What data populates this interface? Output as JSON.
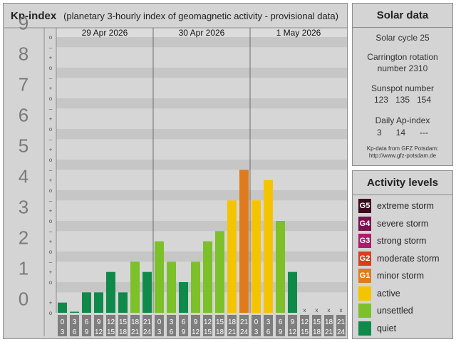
{
  "header": {
    "title": "Kp-index",
    "subtitle": "(planetary 3-hourly index of geomagnetic activity - provisional data)"
  },
  "colors": {
    "quiet": "#0f8a4a",
    "unsettled": "#7cc02a",
    "active": "#f5c400",
    "g1": "#e07b1d",
    "g2": "#d93e1f",
    "g3": "#b4196a",
    "g4": "#7a0f4f",
    "g5": "#3c0a1e"
  },
  "chart_data": {
    "type": "bar",
    "y_range": [
      0,
      9
    ],
    "y_tick_labels": [
      "0",
      "1",
      "2",
      "3",
      "4",
      "5",
      "6",
      "7",
      "8",
      "9"
    ],
    "minor_tick_symbols": [
      "o",
      "+",
      "–"
    ],
    "days": [
      "29 Apr 2026",
      "30 Apr 2026",
      "1 May 2026"
    ],
    "interval_labels": [
      [
        "0",
        "3"
      ],
      [
        "3",
        "6"
      ],
      [
        "6",
        "9"
      ],
      [
        "9",
        "12"
      ],
      [
        "12",
        "15"
      ],
      [
        "15",
        "18"
      ],
      [
        "18",
        "21"
      ],
      [
        "21",
        "24"
      ],
      [
        "0",
        "3"
      ],
      [
        "3",
        "6"
      ],
      [
        "6",
        "9"
      ],
      [
        "9",
        "12"
      ],
      [
        "12",
        "15"
      ],
      [
        "15",
        "18"
      ],
      [
        "18",
        "21"
      ],
      [
        "21",
        "24"
      ],
      [
        "0",
        "3"
      ],
      [
        "3",
        "6"
      ],
      [
        "6",
        "9"
      ],
      [
        "9",
        "12"
      ],
      [
        "12",
        "15"
      ],
      [
        "15",
        "18"
      ],
      [
        "18",
        "21"
      ],
      [
        "21",
        "24"
      ]
    ],
    "values": [
      0.333,
      0,
      0.667,
      0.667,
      1.333,
      0.667,
      1.667,
      1.333,
      2.333,
      1.667,
      1.0,
      1.667,
      2.333,
      2.667,
      3.667,
      4.667,
      3.667,
      4.333,
      3.0,
      1.333,
      null,
      null,
      null,
      null
    ],
    "levels": [
      "quiet",
      "quiet",
      "quiet",
      "quiet",
      "quiet",
      "quiet",
      "unsettled",
      "quiet",
      "unsettled",
      "unsettled",
      "quiet",
      "unsettled",
      "unsettled",
      "unsettled",
      "active",
      "g1",
      "active",
      "active",
      "unsettled",
      "quiet",
      null,
      null,
      null,
      null
    ],
    "missing_marker": "x"
  },
  "solar": {
    "title": "Solar data",
    "cycle": "Solar cycle 25",
    "carrington_line1": "Carrington rotation",
    "carrington_line2": "number 2310",
    "sunspot_label": "Sunspot number",
    "sunspot_values": "123   135   154",
    "ap_label": "Daily Ap-index",
    "ap_values": "3      14      ---",
    "source_line1": "Kp-data from GFZ Potsdam:",
    "source_line2": "http://www.gfz-potsdam.de"
  },
  "legend": {
    "title": "Activity levels",
    "items": [
      {
        "code": "G5",
        "label": "extreme storm",
        "level": "g5"
      },
      {
        "code": "G4",
        "label": "severe storm",
        "level": "g4"
      },
      {
        "code": "G3",
        "label": "strong storm",
        "level": "g3"
      },
      {
        "code": "G2",
        "label": "moderate storm",
        "level": "g2"
      },
      {
        "code": "G1",
        "label": "minor storm",
        "level": "g1"
      },
      {
        "code": "",
        "label": "active",
        "level": "active"
      },
      {
        "code": "",
        "label": "unsettled",
        "level": "unsettled"
      },
      {
        "code": "",
        "label": "quiet",
        "level": "quiet"
      }
    ]
  }
}
